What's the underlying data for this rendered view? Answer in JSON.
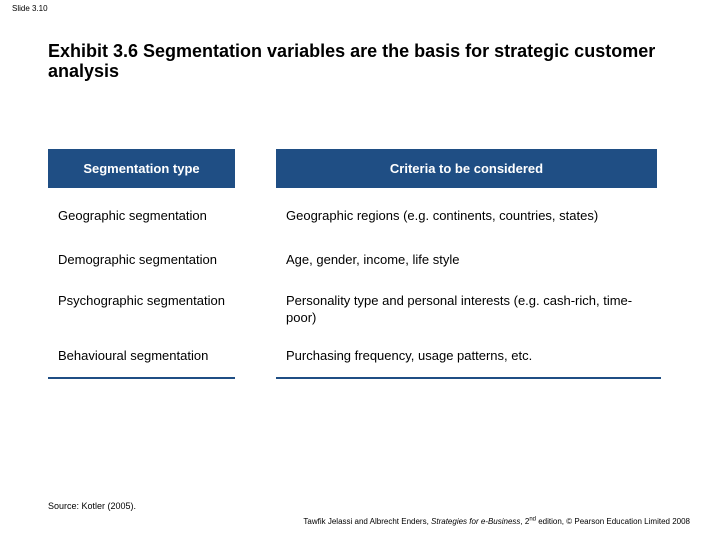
{
  "slide_number": "Slide 3.10",
  "title": "Exhibit 3.6 Segmentation variables are the basis for strategic customer analysis",
  "table": {
    "headers": [
      "Segmentation type",
      "Criteria to be considered"
    ],
    "rows": [
      {
        "type": "Geographic segmentation",
        "criteria": "Geographic regions (e.g. continents, countries, states)"
      },
      {
        "type": "Demographic segmentation",
        "criteria": "Age, gender, income, life style"
      },
      {
        "type": "Psychographic segmentation",
        "criteria": "Personality type and personal interests (e.g. cash-rich, time-poor)"
      },
      {
        "type": "Behavioural segmentation",
        "criteria": "Purchasing frequency, usage patterns, etc."
      }
    ]
  },
  "source": "Source: Kotler (2005).",
  "footer": {
    "authors": "Tawfik Jelassi and Albrecht Enders, ",
    "book_title": "Strategies for e-Business",
    "edition_num": ", 2",
    "edition_sup": "nd",
    "rest": " edition, © Pearson Education Limited 2008"
  },
  "colors": {
    "header_bg": "#1f4e84",
    "header_text": "#ffffff",
    "rule": "#1f4e84"
  }
}
